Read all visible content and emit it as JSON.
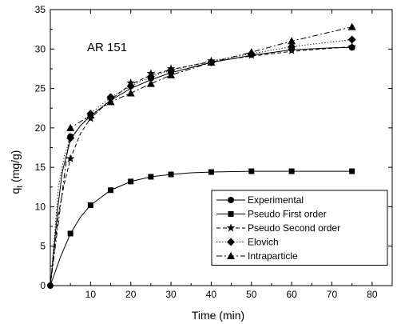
{
  "chart_data": {
    "type": "line",
    "annotation": "AR 151",
    "xlabel": "Time (min)",
    "ylabel_main": "q",
    "ylabel_sub": "t",
    "ylabel_unit": " (mg/g)",
    "xlim": [
      0,
      85
    ],
    "ylim": [
      0,
      35
    ],
    "xticks": [
      10,
      20,
      30,
      40,
      50,
      60,
      70,
      80
    ],
    "yticks": [
      0,
      5,
      10,
      15,
      20,
      25,
      30,
      35
    ],
    "legend_position": "bottom-right",
    "grid": false,
    "series": [
      {
        "name": "Experimental",
        "marker": "circle",
        "line": "solid",
        "points": [
          [
            0,
            0
          ],
          [
            5,
            18.9
          ],
          [
            10,
            21.6
          ],
          [
            15,
            23.8
          ],
          [
            20,
            25.3
          ],
          [
            25,
            26.3
          ],
          [
            30,
            27.0
          ],
          [
            40,
            28.3
          ],
          [
            50,
            29.3
          ],
          [
            60,
            30.0
          ],
          [
            75,
            30.2
          ]
        ],
        "curve": [
          [
            0,
            0
          ],
          [
            2,
            10.5
          ],
          [
            3,
            14.5
          ],
          [
            5,
            18.5
          ],
          [
            7.5,
            20.3
          ],
          [
            10,
            21.5
          ],
          [
            15,
            23.5
          ],
          [
            20,
            25.0
          ],
          [
            25,
            26.1
          ],
          [
            30,
            27.0
          ],
          [
            40,
            28.3
          ],
          [
            50,
            29.2
          ],
          [
            60,
            29.9
          ],
          [
            70,
            30.15
          ],
          [
            75,
            30.2
          ]
        ]
      },
      {
        "name": "Pseudo First order",
        "marker": "square",
        "line": "solid",
        "points": [
          [
            5,
            6.6
          ],
          [
            10,
            10.2
          ],
          [
            15,
            12.1
          ],
          [
            20,
            13.2
          ],
          [
            25,
            13.8
          ],
          [
            30,
            14.1
          ],
          [
            40,
            14.4
          ],
          [
            50,
            14.5
          ],
          [
            60,
            14.5
          ],
          [
            75,
            14.5
          ]
        ],
        "curve": [
          [
            0,
            0
          ],
          [
            2.5,
            3.6
          ],
          [
            5,
            6.6
          ],
          [
            7.5,
            8.7
          ],
          [
            10,
            10.2
          ],
          [
            15,
            12.1
          ],
          [
            20,
            13.2
          ],
          [
            25,
            13.8
          ],
          [
            30,
            14.1
          ],
          [
            35,
            14.3
          ],
          [
            40,
            14.4
          ],
          [
            50,
            14.5
          ],
          [
            60,
            14.5
          ],
          [
            75,
            14.5
          ]
        ]
      },
      {
        "name": "Pseudo Second order",
        "marker": "star",
        "line": "dashed",
        "points": [
          [
            5,
            16.1
          ],
          [
            10,
            21.2
          ],
          [
            15,
            23.6
          ],
          [
            20,
            25.7
          ],
          [
            25,
            26.9
          ],
          [
            30,
            27.5
          ],
          [
            40,
            28.5
          ],
          [
            50,
            29.2
          ],
          [
            60,
            29.8
          ],
          [
            75,
            30.3
          ]
        ],
        "curve": [
          [
            0,
            0
          ],
          [
            2,
            9.0
          ],
          [
            3.5,
            13.0
          ],
          [
            5,
            16.1
          ],
          [
            7.5,
            19.3
          ],
          [
            10,
            21.2
          ],
          [
            15,
            23.6
          ],
          [
            20,
            25.5
          ],
          [
            25,
            26.7
          ],
          [
            30,
            27.4
          ],
          [
            40,
            28.4
          ],
          [
            50,
            29.1
          ],
          [
            60,
            29.7
          ],
          [
            75,
            30.3
          ]
        ]
      },
      {
        "name": "Elovich",
        "marker": "diamond",
        "line": "dotted",
        "points": [
          [
            5,
            18.7
          ],
          [
            10,
            21.8
          ],
          [
            15,
            23.9
          ],
          [
            20,
            25.3
          ],
          [
            25,
            26.5
          ],
          [
            30,
            27.3
          ],
          [
            40,
            28.3
          ],
          [
            50,
            29.4
          ],
          [
            60,
            30.3
          ],
          [
            75,
            31.2
          ]
        ],
        "curve": [
          [
            0.5,
            3
          ],
          [
            2,
            12.5
          ],
          [
            3.5,
            16.5
          ],
          [
            5,
            18.7
          ],
          [
            10,
            21.8
          ],
          [
            15,
            23.9
          ],
          [
            20,
            25.3
          ],
          [
            25,
            26.5
          ],
          [
            30,
            27.3
          ],
          [
            40,
            28.5
          ],
          [
            50,
            29.4
          ],
          [
            60,
            30.3
          ],
          [
            75,
            31.2
          ]
        ]
      },
      {
        "name": "Intraparticle",
        "marker": "triangle",
        "line": "dashdot",
        "points": [
          [
            5,
            20.0
          ],
          [
            10,
            21.6
          ],
          [
            15,
            23.3
          ],
          [
            20,
            24.4
          ],
          [
            25,
            25.6
          ],
          [
            30,
            26.7
          ],
          [
            40,
            28.3
          ],
          [
            50,
            29.6
          ],
          [
            60,
            31.0
          ],
          [
            75,
            32.8
          ]
        ],
        "curve": [
          [
            0,
            0
          ],
          [
            5,
            20.0
          ],
          [
            10,
            21.6
          ],
          [
            15,
            23.3
          ],
          [
            20,
            24.4
          ],
          [
            25,
            25.6
          ],
          [
            30,
            26.7
          ],
          [
            40,
            28.3
          ],
          [
            50,
            29.6
          ],
          [
            60,
            31.0
          ],
          [
            75,
            32.8
          ]
        ]
      }
    ]
  }
}
